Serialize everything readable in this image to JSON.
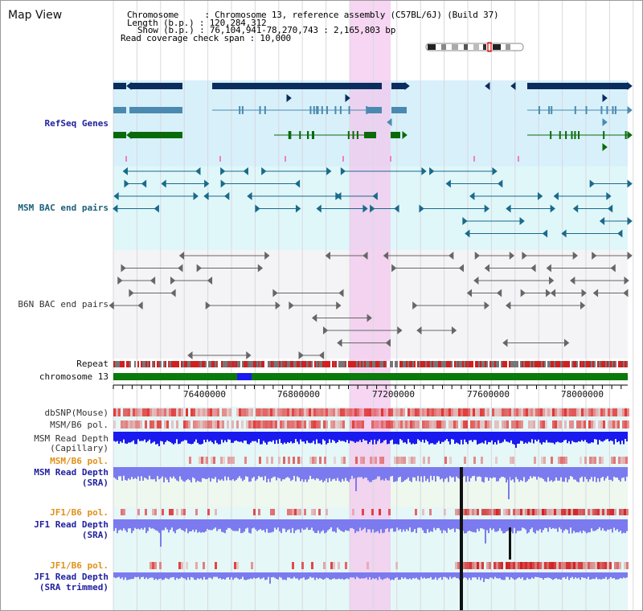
{
  "page": {
    "title": "Map View"
  },
  "info": {
    "chromosome_line": "Chromosome     : Chromosome 13, reference assembly (C57BL/6J) (Build 37)",
    "length_line": "Length (b.p.) : 120,284,312",
    "show_line": "Show (b.p.) : 76,104,941-78,270,743 : 2,165,803 bp",
    "coverage_line": "Read coverage check span : 10,000"
  },
  "tracks": {
    "refseq": "RefSeq Genes",
    "msm_bac": "MSM BAC end pairs",
    "b6n_bac": "B6N BAC end pairs",
    "repeat": "Repeat",
    "chromosome": "chromosome 13",
    "dbsnp": "dbSNP(Mouse)",
    "msm_b6_pol_1": "MSM/B6 pol.",
    "msm_depth_cap_1": "MSM Read Depth",
    "msm_depth_cap_2": "(Capillary)",
    "msm_b6_pol_2": "MSM/B6 pol.",
    "msm_depth_sra_1": "MSM Read Depth",
    "msm_depth_sra_2": "(SRA)",
    "jf1_b6_pol_1": "JF1/B6 pol.",
    "jf1_depth_sra_1": "JF1 Read Depth",
    "jf1_depth_sra_2": "(SRA)",
    "jf1_b6_pol_2": "JF1/B6 pol.",
    "jf1_depth_trim_1": "JF1 Read Depth",
    "jf1_depth_trim_2": "(SRA trimmed)"
  },
  "axis": {
    "ticks": [
      "76400000",
      "76800000",
      "77200000",
      "77600000",
      "78000000"
    ]
  },
  "colors": {
    "highlight": "#f3c8ee",
    "refseq_bg": "#d8f0fa",
    "msm_bg": "#e0f7fa",
    "gene_navy": "#0b2d5e",
    "gene_steel": "#4a8ab0",
    "gene_green": "#0a6a0a",
    "depth_capillary": "#1a1aef",
    "depth_sra": "#7b7bef",
    "chromosome_green": "#0a7a0a"
  },
  "icons": {
    "ideogram": "chromosome-ideogram-icon"
  }
}
